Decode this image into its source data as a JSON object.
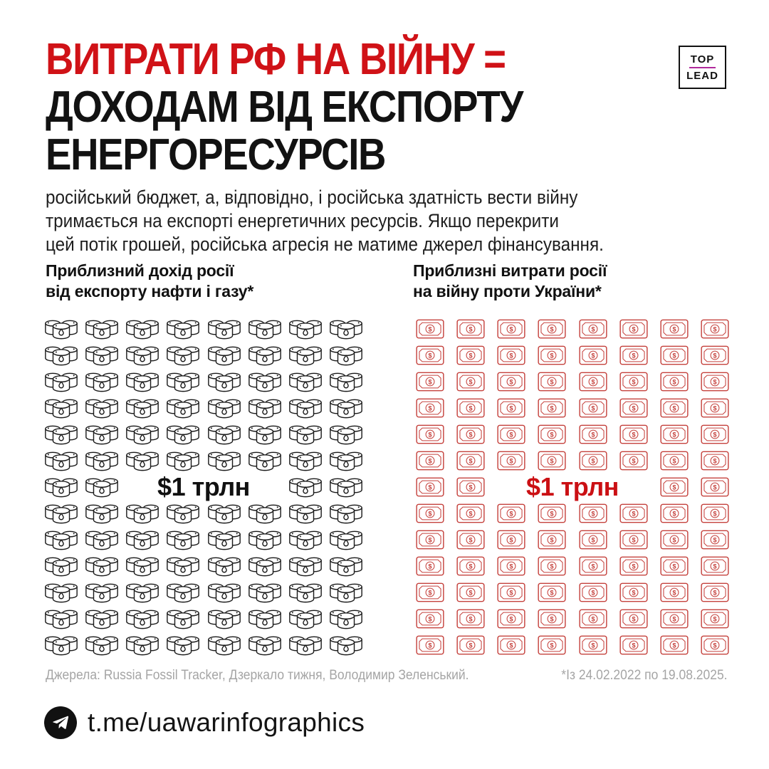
{
  "page": {
    "background": "#ffffff"
  },
  "header": {
    "title_lines": [
      {
        "text": "ВИТРАТИ РФ НА ВІЙНУ =",
        "color": "#d01217"
      },
      {
        "text": "ДОХОДАМ ВІД ЕКСПОРТУ",
        "color": "#121212"
      },
      {
        "text": "ЕНЕРГОРЕСУРСІВ",
        "color": "#121212"
      }
    ],
    "logo": {
      "top": "TOP",
      "lead": "LEAD",
      "divider_color": "#b0299b"
    }
  },
  "intro": {
    "lines": [
      "російський бюджет, а, відповідно, і російська здатність вести війну",
      "тримається на експорті енергетичних ресурсів. Якщо перекрити",
      "цей потік грошей, російська агресія не матиме джерел фінансування."
    ]
  },
  "chart_data": {
    "type": "pictogram",
    "title": "ВИТРАТИ РФ НА ВІЙНУ = ДОХОДАМ ВІД ЕКСПОРТУ ЕНЕРГОРЕСУРСІВ",
    "grid": {
      "columns": 8,
      "rows": 13,
      "label_row": 7,
      "label_col_start": 3,
      "label_col_end": 6
    },
    "icons_per_series": 100,
    "series": [
      {
        "name": "Приблизний дохід росії від експорту нафти і газу*",
        "name_lines": [
          "Приблизний дохід росії",
          "від експорту нафти і газу*"
        ],
        "icon": "oil-barrels",
        "icon_color": "#1a1a1a",
        "icons": 100,
        "value": "$1 трлн",
        "value_label": "$1 трлн",
        "label_color": "#111111"
      },
      {
        "name": "Приблизні витрати росії на війну проти України*",
        "name_lines": [
          "Приблизні витрати росії",
          "на війну проти України*"
        ],
        "icon": "dollar-bill",
        "icon_color": "#c5423d",
        "icons": 100,
        "value": "$1 трлн",
        "value_label": "$1 трлн",
        "label_color": "#cb1014"
      }
    ]
  },
  "footnote": {
    "sources": "Джерела: Russia Fossil Tracker, Дзеркало тижня, Володимир Зеленський.",
    "period": "*Із 24.02.2022 по 19.08.2025."
  },
  "footer": {
    "handle": "t.me/uawarinfographics"
  }
}
